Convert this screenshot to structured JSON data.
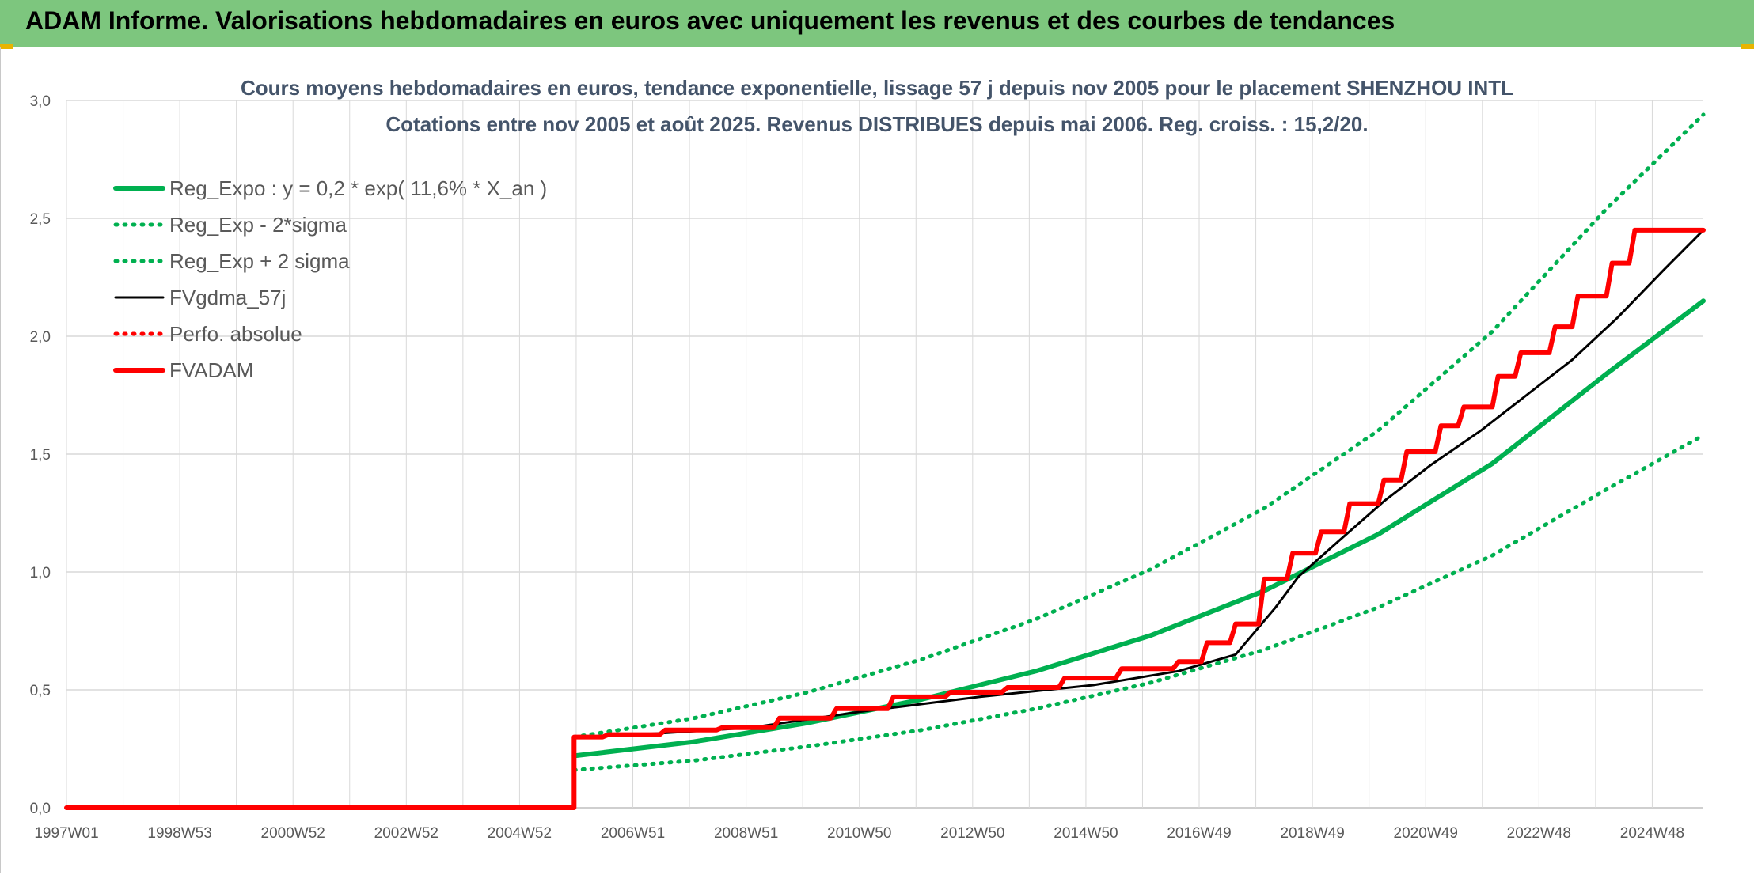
{
  "banner": {
    "title": "ADAM Informe. Valorisations hebdomadaires en euros avec uniquement les revenus et des courbes de tendances"
  },
  "colors": {
    "banner": "#7dc67e",
    "trend": "#00b050",
    "price": "#000000",
    "adam": "#ff0000",
    "grid": "#d9d9d9"
  },
  "chart_data": {
    "type": "line",
    "title": "Cours moyens hebdomadaires en euros, tendance exponentielle, lissage 57 j depuis nov 2005 pour le placement SHENZHOU INTL",
    "subtitle": "Cotations entre nov 2005 et août 2025. Revenus DISTRIBUES depuis mai 2006. Reg. croiss. : 15,2/20.",
    "xlabel": "",
    "ylabel": "",
    "ylim": [
      0,
      3
    ],
    "grid": true,
    "legend_position": "top-left",
    "x_tick_labels": [
      "1997W01",
      "1998W53",
      "2000W52",
      "2002W52",
      "2004W52",
      "2006W51",
      "2008W51",
      "2010W50",
      "2012W50",
      "2014W50",
      "2016W49",
      "2018W49",
      "2020W49",
      "2022W48",
      "2024W48"
    ],
    "y_tick_labels": [
      "0,0",
      "0,5",
      "1,0",
      "1,5",
      "2,0",
      "2,5",
      "3,0"
    ],
    "series": [
      {
        "name": "Reg_Expo : y = 0,2 * exp( 11,6% *  X_an )",
        "style": "solid",
        "color": "#00b050",
        "x": [
          2005.9,
          2008,
          2010,
          2012,
          2014,
          2016,
          2018,
          2020,
          2022,
          2024,
          2025.7
        ],
        "y": [
          0.22,
          0.28,
          0.36,
          0.46,
          0.58,
          0.73,
          0.92,
          1.16,
          1.46,
          1.84,
          2.15
        ]
      },
      {
        "name": "Reg_Exp - 2*sigma",
        "style": "dotted",
        "color": "#00b050",
        "x": [
          2005.9,
          2008,
          2010,
          2012,
          2014,
          2016,
          2018,
          2020,
          2022,
          2024,
          2025.7
        ],
        "y": [
          0.16,
          0.2,
          0.26,
          0.33,
          0.42,
          0.53,
          0.67,
          0.85,
          1.07,
          1.35,
          1.58
        ]
      },
      {
        "name": "Reg_Exp + 2 sigma",
        "style": "dotted",
        "color": "#00b050",
        "x": [
          2005.9,
          2008,
          2010,
          2012,
          2014,
          2016,
          2018,
          2020,
          2022,
          2024,
          2025.7
        ],
        "y": [
          0.3,
          0.38,
          0.49,
          0.63,
          0.8,
          1.01,
          1.27,
          1.6,
          2.02,
          2.54,
          2.94
        ]
      },
      {
        "name": "FVgdma_57j",
        "style": "solid",
        "color": "#000000",
        "x": [
          1997.0,
          2005.9,
          2005.9,
          2007,
          2009,
          2011,
          2013,
          2015,
          2016.5,
          2017.5,
          2018.2,
          2018.6,
          2019.3,
          2020.1,
          2020.9,
          2021.8,
          2022.6,
          2023.4,
          2024.2,
          2025.0,
          2025.7
        ],
        "y": [
          0.0,
          0.0,
          0.3,
          0.31,
          0.34,
          0.41,
          0.47,
          0.52,
          0.58,
          0.65,
          0.85,
          0.98,
          1.13,
          1.3,
          1.45,
          1.6,
          1.75,
          1.9,
          2.08,
          2.28,
          2.45
        ]
      },
      {
        "name": "Perfo. absolue",
        "style": "dotted",
        "color": "#ff0000",
        "x": [],
        "y": []
      },
      {
        "name": "FVADAM",
        "style": "step",
        "color": "#ff0000",
        "x": [
          1997.0,
          2005.9,
          2005.9,
          2006.4,
          2006.5,
          2007.4,
          2007.5,
          2008.4,
          2008.5,
          2009.4,
          2009.5,
          2010.4,
          2010.5,
          2011.4,
          2011.5,
          2012.4,
          2012.5,
          2013.4,
          2013.5,
          2014.4,
          2014.5,
          2015.4,
          2015.5,
          2016.4,
          2016.5,
          2016.9,
          2017.0,
          2017.4,
          2017.5,
          2017.9,
          2018.0,
          2018.4,
          2018.5,
          2018.9,
          2019.0,
          2019.4,
          2019.5,
          2020.0,
          2020.1,
          2020.4,
          2020.5,
          2021.0,
          2021.1,
          2021.4,
          2021.5,
          2022.0,
          2022.1,
          2022.4,
          2022.5,
          2023.0,
          2023.1,
          2023.4,
          2023.5,
          2024.0,
          2024.1,
          2024.4,
          2024.5,
          2025.0,
          2025.1,
          2025.7
        ],
        "y": [
          0.0,
          0.0,
          0.3,
          0.3,
          0.31,
          0.31,
          0.33,
          0.33,
          0.34,
          0.34,
          0.38,
          0.38,
          0.42,
          0.42,
          0.47,
          0.47,
          0.49,
          0.49,
          0.51,
          0.51,
          0.55,
          0.55,
          0.59,
          0.59,
          0.62,
          0.62,
          0.7,
          0.7,
          0.78,
          0.78,
          0.97,
          0.97,
          1.08,
          1.08,
          1.17,
          1.17,
          1.29,
          1.29,
          1.39,
          1.39,
          1.51,
          1.51,
          1.62,
          1.62,
          1.7,
          1.7,
          1.83,
          1.83,
          1.93,
          1.93,
          2.04,
          2.04,
          2.17,
          2.17,
          2.31,
          2.31,
          2.45,
          2.45,
          2.45,
          2.45
        ]
      }
    ]
  }
}
